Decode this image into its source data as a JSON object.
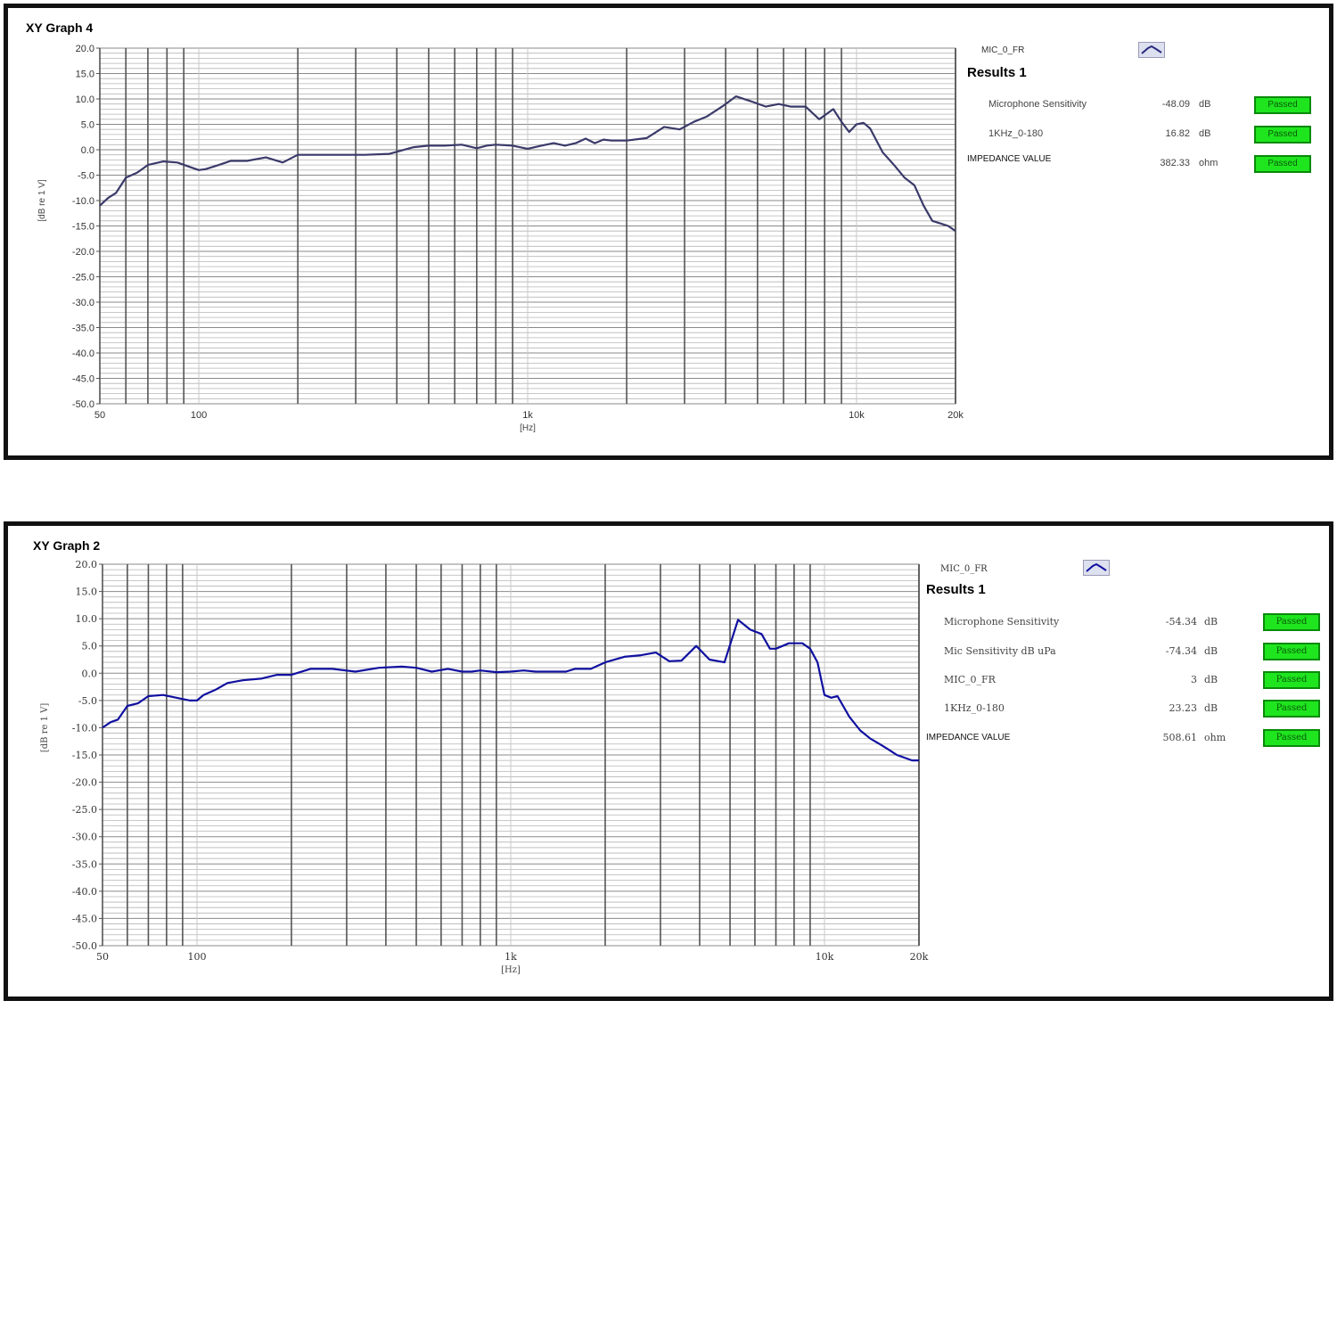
{
  "graphs": [
    {
      "title": "XY Graph 4",
      "xlabel": "[Hz]",
      "ylabel": "[dB re 1 V]",
      "legend": {
        "name": "MIC_0_FR",
        "icon": "curve-icon"
      },
      "results_title": "Results 1",
      "results": [
        {
          "name": "Microphone Sensitivity",
          "value": "-48.09",
          "unit": "dB",
          "status": "Passed"
        },
        {
          "name": "1KHz_0-180",
          "value": "16.82",
          "unit": "dB",
          "status": "Passed"
        },
        {
          "name": "IMPEDANCE VALUE",
          "value": "382.33",
          "unit": "ohm",
          "status": "Passed"
        }
      ]
    },
    {
      "title": "XY Graph 2",
      "xlabel": "[Hz]",
      "ylabel": "[dB re 1 V]",
      "legend": {
        "name": "MIC_0_FR",
        "icon": "curve-icon"
      },
      "results_title": "Results 1",
      "results": [
        {
          "name": "Microphone Sensitivity",
          "value": "-54.34",
          "unit": "dB",
          "status": "Passed"
        },
        {
          "name": "Mic Sensitivity dB uPa",
          "value": "-74.34",
          "unit": "dB",
          "status": "Passed"
        },
        {
          "name": "MIC_0_FR",
          "value": "3",
          "unit": "dB",
          "status": "Passed"
        },
        {
          "name": "1KHz_0-180",
          "value": "23.23",
          "unit": "dB",
          "status": "Passed"
        },
        {
          "name": "IMPEDANCE VALUE",
          "value": "508.61",
          "unit": "ohm",
          "status": "Passed"
        }
      ]
    }
  ],
  "chart_data": [
    {
      "type": "line",
      "title": "XY Graph 4",
      "xlabel": "[Hz]",
      "ylabel": "[dB re 1 V]",
      "xscale": "log",
      "xlim": [
        50,
        20000
      ],
      "ylim": [
        -50,
        20
      ],
      "x_ticks": [
        "50",
        "100",
        "1k",
        "10k",
        "20k"
      ],
      "y_ticks": [
        "20.0",
        "15.0",
        "10.0",
        "5.0",
        "0.0",
        "-5.0",
        "-10.0",
        "-15.0",
        "-20.0",
        "-25.0",
        "-30.0",
        "-35.0",
        "-40.0",
        "-45.0",
        "-50.0"
      ],
      "grid": true,
      "line_color": "#3a3a6a",
      "series": [
        {
          "name": "MIC_0_FR",
          "x": [
            50,
            53,
            56,
            60,
            65,
            70,
            78,
            86,
            95,
            100,
            105,
            115,
            125,
            140,
            160,
            180,
            200,
            230,
            270,
            320,
            380,
            450,
            500,
            560,
            630,
            700,
            750,
            800,
            900,
            1000,
            1100,
            1200,
            1300,
            1400,
            1500,
            1600,
            1700,
            1800,
            2000,
            2300,
            2600,
            2900,
            3200,
            3500,
            3900,
            4300,
            4800,
            5300,
            5800,
            6300,
            7000,
            7700,
            8500,
            9000,
            9500,
            10000,
            10500,
            11000,
            12000,
            13000,
            14000,
            15000,
            16000,
            17000,
            18000,
            19000,
            20000
          ],
          "y": [
            -11,
            -9.5,
            -8.5,
            -5.5,
            -4.5,
            -3,
            -2.3,
            -2.5,
            -3.5,
            -4,
            -3.8,
            -3,
            -2.2,
            -2.2,
            -1.5,
            -2.5,
            -1,
            -1,
            -1,
            -1,
            -0.8,
            0.5,
            0.8,
            0.8,
            1,
            0.3,
            0.8,
            1,
            0.8,
            0.2,
            0.8,
            1.3,
            0.8,
            1.3,
            2.2,
            1.3,
            2,
            1.8,
            1.8,
            2.3,
            4.5,
            4,
            5.5,
            6.5,
            8.5,
            10.5,
            9.5,
            8.5,
            9,
            8.5,
            8.5,
            6,
            8,
            5.5,
            3.5,
            5,
            5.3,
            4.2,
            -0.5,
            -3,
            -5.5,
            -7,
            -11,
            -14,
            -14.5,
            -15,
            -16
          ]
        }
      ]
    },
    {
      "type": "line",
      "title": "XY Graph 2",
      "xlabel": "[Hz]",
      "ylabel": "[dB re 1 V]",
      "xscale": "log",
      "xlim": [
        50,
        20000
      ],
      "ylim": [
        -50,
        20
      ],
      "x_ticks": [
        "50",
        "100",
        "1k",
        "10k",
        "20k"
      ],
      "y_ticks": [
        "20.0",
        "15.0",
        "10.0",
        "5.0",
        "0.0",
        "-5.0",
        "-10.0",
        "-15.0",
        "-20.0",
        "-25.0",
        "-30.0",
        "-35.0",
        "-40.0",
        "-45.0",
        "-50.0"
      ],
      "grid": true,
      "line_color": "#1010a0",
      "series": [
        {
          "name": "MIC_0_FR",
          "x": [
            50,
            53,
            56,
            60,
            65,
            70,
            78,
            86,
            95,
            100,
            105,
            115,
            125,
            140,
            160,
            180,
            200,
            230,
            270,
            320,
            380,
            450,
            500,
            560,
            630,
            700,
            750,
            800,
            900,
            1000,
            1100,
            1200,
            1300,
            1400,
            1500,
            1600,
            1700,
            1800,
            2000,
            2300,
            2600,
            2900,
            3200,
            3500,
            3900,
            4300,
            4800,
            5300,
            5800,
            6300,
            6700,
            7000,
            7700,
            8500,
            9000,
            9500,
            10000,
            10500,
            11000,
            12000,
            13000,
            14000,
            15000,
            16000,
            17000,
            18000,
            19000,
            20000
          ],
          "y": [
            -10,
            -9,
            -8.5,
            -6,
            -5.5,
            -4.2,
            -4,
            -4.5,
            -5,
            -5,
            -4,
            -3,
            -1.8,
            -1.3,
            -1,
            -0.3,
            -0.3,
            0.8,
            0.8,
            0.3,
            1,
            1.2,
            1,
            0.3,
            0.8,
            0.3,
            0.3,
            0.5,
            0.2,
            0.3,
            0.5,
            0.3,
            0.3,
            0.3,
            0.3,
            0.8,
            0.8,
            0.8,
            2,
            3,
            3.3,
            3.8,
            2.2,
            2.3,
            5,
            2.5,
            2,
            9.8,
            8,
            7.2,
            4.5,
            4.5,
            5.5,
            5.5,
            4.5,
            2,
            -4,
            -4.5,
            -4.2,
            -8,
            -10.5,
            -12,
            -13,
            -14,
            -15,
            -15.5,
            -16,
            -16
          ]
        }
      ]
    }
  ]
}
